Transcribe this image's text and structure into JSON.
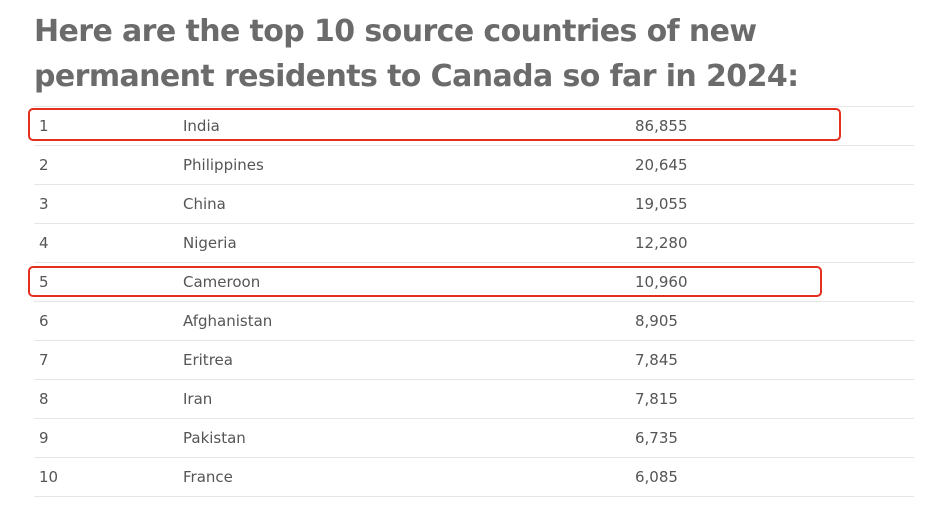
{
  "heading": "Here are the top 10 source countries of new permanent residents to Canada so far in 2024:",
  "chart_data": {
    "type": "table",
    "title": "Here are the top 10 source countries of new permanent residents to Canada so far in 2024:",
    "rows": [
      {
        "rank": "1",
        "country": "India",
        "value": "86,855",
        "highlighted": true
      },
      {
        "rank": "2",
        "country": "Philippines",
        "value": "20,645",
        "highlighted": false
      },
      {
        "rank": "3",
        "country": "China",
        "value": "19,055",
        "highlighted": false
      },
      {
        "rank": "4",
        "country": "Nigeria",
        "value": "12,280",
        "highlighted": false
      },
      {
        "rank": "5",
        "country": "Cameroon",
        "value": "10,960",
        "highlighted": true
      },
      {
        "rank": "6",
        "country": "Afghanistan",
        "value": "8,905",
        "highlighted": false
      },
      {
        "rank": "7",
        "country": "Eritrea",
        "value": "7,845",
        "highlighted": false
      },
      {
        "rank": "8",
        "country": "Iran",
        "value": "7,815",
        "highlighted": false
      },
      {
        "rank": "9",
        "country": "Pakistan",
        "value": "6,735",
        "highlighted": false
      },
      {
        "rank": "10",
        "country": "France",
        "value": "6,085",
        "highlighted": false
      }
    ],
    "highlight_color": "#e1301f"
  }
}
